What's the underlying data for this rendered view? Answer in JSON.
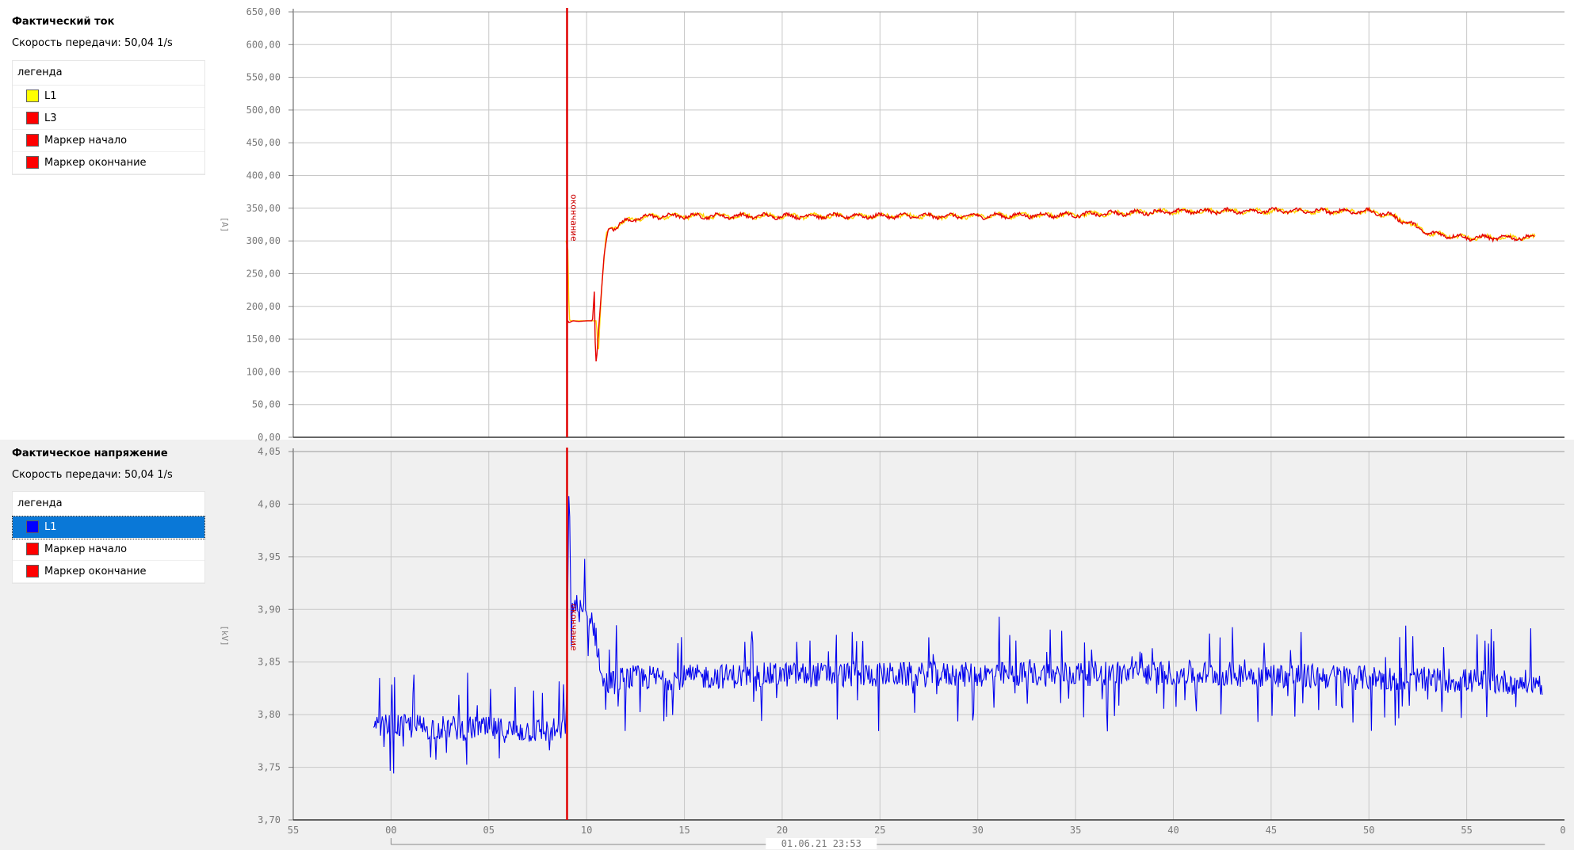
{
  "panels": [
    {
      "title": "Фактический ток",
      "rate": "Скорость передачи: 50,04 1/s",
      "legend_title": "легенда",
      "legend": [
        {
          "label": "L1",
          "color": "#ffff00"
        },
        {
          "label": "L3",
          "color": "#ff0000"
        },
        {
          "label": "Маркер начало",
          "color": "#ff0000"
        },
        {
          "label": "Маркер окончание",
          "color": "#ff0000"
        }
      ]
    },
    {
      "title": "Фактическое напряжение",
      "rate": "Скорость передачи: 50,04 1/s",
      "legend_title": "легенда",
      "legend": [
        {
          "label": "L1",
          "color": "#0000ff",
          "selected": true
        },
        {
          "label": "Маркер начало",
          "color": "#ff0000"
        },
        {
          "label": "Маркер окончание",
          "color": "#ff0000"
        }
      ]
    }
  ],
  "chart_data": [
    {
      "type": "line",
      "ylabel": "[A]",
      "ylim": [
        0,
        650
      ],
      "yticks": [
        "0,00",
        "50,00",
        "100,00",
        "150,00",
        "200,00",
        "250,00",
        "300,00",
        "350,00",
        "400,00",
        "450,00",
        "500,00",
        "550,00",
        "600,00",
        "650,00"
      ],
      "grid": true,
      "marker": {
        "x": 9.0,
        "label": "окончание"
      },
      "series": [
        {
          "name": "L1",
          "color": "#ffd400",
          "x": [
            8.95,
            9.05,
            9.1,
            9.2,
            9.4,
            9.7,
            10.0,
            10.3,
            10.5,
            10.6,
            10.7,
            10.8,
            11.0,
            11.2,
            11.5,
            12,
            13,
            14,
            20,
            25,
            30,
            35,
            40,
            45,
            50,
            51,
            52,
            53,
            55,
            58.5
          ],
          "y": [
            300,
            285,
            180,
            178,
            178,
            178,
            178,
            178,
            178,
            125,
            190,
            240,
            312,
            320,
            322,
            330,
            337,
            338,
            338,
            338,
            338,
            340,
            345,
            346,
            345,
            340,
            328,
            312,
            305,
            305
          ]
        },
        {
          "name": "L3",
          "color": "#e60000",
          "x": [
            9.0,
            9.1,
            9.3,
            9.6,
            10.0,
            10.3,
            10.4,
            10.45,
            10.5,
            10.6,
            10.7,
            10.9,
            11.1,
            11.5,
            12,
            13,
            14,
            20,
            25,
            30,
            35,
            40,
            45,
            50,
            51,
            52,
            53,
            55,
            58.5
          ],
          "y": [
            180,
            175,
            178,
            177,
            178,
            178,
            225,
            125,
            112,
            160,
            200,
            280,
            318,
            322,
            330,
            337,
            338,
            338,
            338,
            338,
            340,
            345,
            346,
            345,
            340,
            328,
            312,
            305,
            305
          ]
        }
      ]
    },
    {
      "type": "line",
      "ylabel": "[kV]",
      "ylim": [
        3.7,
        4.05
      ],
      "yticks": [
        "3,70",
        "3,75",
        "3,80",
        "3,85",
        "3,90",
        "3,95",
        "4,00",
        "4,05"
      ],
      "grid": true,
      "marker": {
        "x": 9.0,
        "label": "окончание"
      },
      "series": [
        {
          "name": "L1",
          "color": "#0000ee",
          "x": [
            -0.9,
            0,
            2,
            4,
            6,
            8,
            8.9,
            9.0,
            9.1,
            9.2,
            9.4,
            9.6,
            10,
            10.3,
            10.6,
            10.8,
            11.2,
            12,
            14,
            20,
            30,
            40,
            50,
            58.9
          ],
          "y": [
            3.785,
            3.79,
            3.788,
            3.787,
            3.785,
            3.785,
            3.785,
            3.84,
            4.02,
            3.9,
            3.905,
            3.9,
            3.895,
            3.89,
            3.86,
            3.83,
            3.83,
            3.835,
            3.835,
            3.838,
            3.838,
            3.84,
            3.835,
            3.83
          ]
        }
      ]
    }
  ],
  "x_axis": {
    "ticks": [
      "55",
      "00",
      "05",
      "10",
      "15",
      "20",
      "25",
      "30",
      "35",
      "40",
      "45",
      "50",
      "55",
      "0"
    ],
    "values": [
      -5,
      0,
      5,
      10,
      15,
      20,
      25,
      30,
      35,
      40,
      45,
      50,
      55,
      60
    ],
    "range": [
      -5,
      60
    ],
    "date_label": "01.06.21 23:53"
  }
}
